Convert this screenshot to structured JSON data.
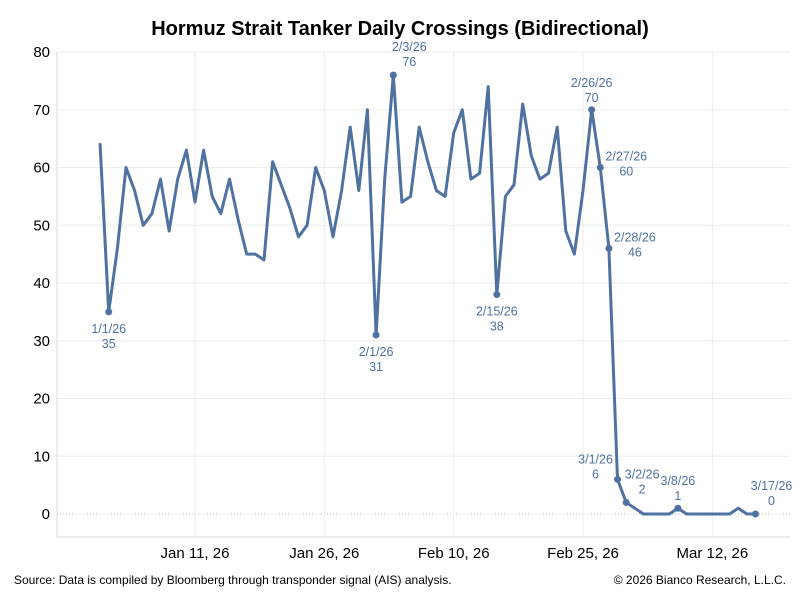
{
  "chart_data": {
    "type": "line",
    "title": "Hormuz Strait Tanker Daily Crossings (Bidirectional)",
    "xlabel": "",
    "ylabel": "",
    "ylim": [
      0,
      80
    ],
    "yticks": [
      0,
      10,
      20,
      30,
      40,
      50,
      60,
      70,
      80
    ],
    "xlim": [
      "2025-12-26",
      "2026-03-21"
    ],
    "xticks": [
      {
        "date": "2026-01-11",
        "label": "Jan 11, 26"
      },
      {
        "date": "2026-01-26",
        "label": "Jan 26, 26"
      },
      {
        "date": "2026-02-10",
        "label": "Feb 10, 26"
      },
      {
        "date": "2026-02-25",
        "label": "Feb 25, 26"
      },
      {
        "date": "2026-03-12",
        "label": "Mar 12, 26"
      }
    ],
    "grid": true,
    "color": "#4f72a0",
    "series": [
      {
        "x": [
          "2025-12-31",
          "2026-01-01",
          "2026-01-02",
          "2026-01-03",
          "2026-01-04",
          "2026-01-05",
          "2026-01-06",
          "2026-01-07",
          "2026-01-08",
          "2026-01-09",
          "2026-01-10",
          "2026-01-11",
          "2026-01-12",
          "2026-01-13",
          "2026-01-14",
          "2026-01-15",
          "2026-01-16",
          "2026-01-17",
          "2026-01-18",
          "2026-01-19",
          "2026-01-20",
          "2026-01-21",
          "2026-01-22",
          "2026-01-23",
          "2026-01-24",
          "2026-01-25",
          "2026-01-26",
          "2026-01-27",
          "2026-01-28",
          "2026-01-29",
          "2026-01-30",
          "2026-01-31",
          "2026-02-01",
          "2026-02-02",
          "2026-02-03",
          "2026-02-04",
          "2026-02-05",
          "2026-02-06",
          "2026-02-07",
          "2026-02-08",
          "2026-02-09",
          "2026-02-10",
          "2026-02-11",
          "2026-02-12",
          "2026-02-13",
          "2026-02-14",
          "2026-02-15",
          "2026-02-16",
          "2026-02-17",
          "2026-02-18",
          "2026-02-19",
          "2026-02-20",
          "2026-02-21",
          "2026-02-22",
          "2026-02-23",
          "2026-02-24",
          "2026-02-25",
          "2026-02-26",
          "2026-02-27",
          "2026-02-28",
          "2026-03-01",
          "2026-03-02",
          "2026-03-03",
          "2026-03-04",
          "2026-03-05",
          "2026-03-06",
          "2026-03-07",
          "2026-03-08",
          "2026-03-09",
          "2026-03-10",
          "2026-03-11",
          "2026-03-12",
          "2026-03-13",
          "2026-03-14",
          "2026-03-15",
          "2026-03-16",
          "2026-03-17"
        ],
        "values": [
          64,
          35,
          46,
          60,
          56,
          50,
          52,
          58,
          49,
          58,
          63,
          54,
          63,
          55,
          52,
          58,
          51,
          45,
          45,
          44,
          61,
          57,
          53,
          48,
          50,
          60,
          56,
          48,
          56,
          67,
          56,
          70,
          31,
          58,
          76,
          54,
          55,
          67,
          61,
          56,
          55,
          66,
          70,
          58,
          59,
          74,
          38,
          55,
          57,
          71,
          62,
          58,
          59,
          67,
          49,
          45,
          56,
          70,
          60,
          46,
          6,
          2,
          1,
          0,
          0,
          0,
          0,
          1,
          0,
          0,
          0,
          0,
          0,
          0,
          1,
          0,
          0
        ]
      }
    ],
    "annotations": [
      {
        "x": "2026-01-01",
        "y": 35,
        "date": "1/1/26",
        "value": "35",
        "pos": "below"
      },
      {
        "x": "2026-02-01",
        "y": 31,
        "date": "2/1/26",
        "value": "31",
        "pos": "below"
      },
      {
        "x": "2026-02-03",
        "y": 76,
        "date": "2/3/26",
        "value": "76",
        "pos": "above-right"
      },
      {
        "x": "2026-02-15",
        "y": 38,
        "date": "2/15/26",
        "value": "38",
        "pos": "below"
      },
      {
        "x": "2026-02-26",
        "y": 70,
        "date": "2/26/26",
        "value": "70",
        "pos": "above"
      },
      {
        "x": "2026-02-27",
        "y": 60,
        "date": "2/27/26",
        "value": "60",
        "pos": "right"
      },
      {
        "x": "2026-02-28",
        "y": 46,
        "date": "2/28/26",
        "value": "46",
        "pos": "right"
      },
      {
        "x": "2026-03-01",
        "y": 6,
        "date": "3/1/26",
        "value": "6",
        "pos": "left"
      },
      {
        "x": "2026-03-02",
        "y": 2,
        "date": "3/2/26",
        "value": "2",
        "pos": "above-right"
      },
      {
        "x": "2026-03-08",
        "y": 1,
        "date": "3/8/26",
        "value": "1",
        "pos": "above"
      },
      {
        "x": "2026-03-17",
        "y": 0,
        "date": "3/17/26",
        "value": "0",
        "pos": "above-right"
      }
    ]
  },
  "footer": {
    "source": "Source: Data is compiled by Bloomberg through transponder signal (AIS) analysis.",
    "copyright": "© 2026 Bianco Research, L.L.C."
  }
}
